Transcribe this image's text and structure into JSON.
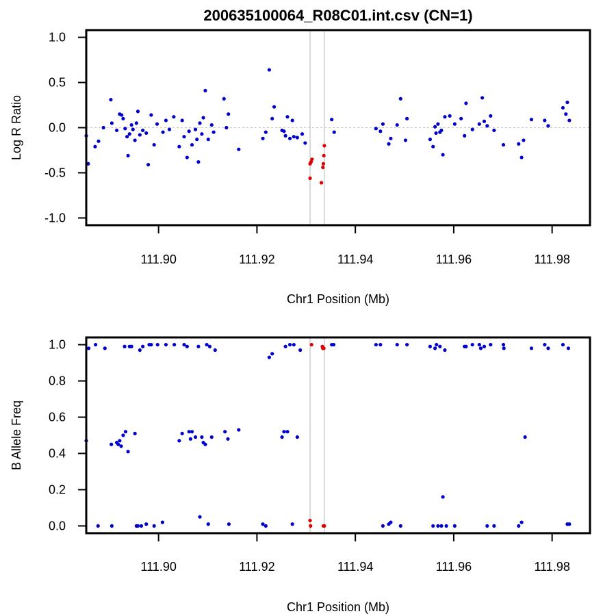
{
  "title": "200635100064_R08C01.int.csv (CN=1)",
  "colors": {
    "normal": "#0000cc",
    "cnv": "#dd0000",
    "region_line": "#c0c0c0",
    "zero_line": "#c8c8c8"
  },
  "chart_data": [
    {
      "type": "scatter",
      "name": "lrr",
      "ylabel": "Log R Ratio",
      "xlabel": "Chr1 Position (Mb)",
      "xlim": [
        111.8853,
        111.9877
      ],
      "ylim": [
        -1.08,
        1.08
      ],
      "xticks": [
        "111.90",
        "111.92",
        "111.94",
        "111.96",
        "111.98"
      ],
      "yticks": [
        "-1.0",
        "-0.5",
        "0.0",
        "0.5",
        "1.0"
      ],
      "hline": 0,
      "region": [
        111.9308,
        111.9337
      ],
      "normal_points": [
        [
          111.8853,
          -0.09
        ],
        [
          111.8857,
          -0.4
        ],
        [
          111.8871,
          -0.21
        ],
        [
          111.8878,
          -0.15
        ],
        [
          111.8888,
          0.0
        ],
        [
          111.8903,
          0.31
        ],
        [
          111.8905,
          0.05
        ],
        [
          111.8915,
          -0.03
        ],
        [
          111.8921,
          0.15
        ],
        [
          111.8925,
          0.14
        ],
        [
          111.8928,
          0.1
        ],
        [
          111.8932,
          -0.01
        ],
        [
          111.8936,
          -0.1
        ],
        [
          111.8938,
          -0.31
        ],
        [
          111.8941,
          -0.07
        ],
        [
          111.8945,
          0.03
        ],
        [
          111.8948,
          -0.02
        ],
        [
          111.8952,
          -0.14
        ],
        [
          111.8955,
          0.05
        ],
        [
          111.8958,
          0.18
        ],
        [
          111.8962,
          -0.08
        ],
        [
          111.8968,
          -0.03
        ],
        [
          111.8975,
          -0.06
        ],
        [
          111.8979,
          -0.41
        ],
        [
          111.8985,
          0.14
        ],
        [
          111.8991,
          -0.19
        ],
        [
          111.8997,
          0.04
        ],
        [
          111.9009,
          -0.05
        ],
        [
          111.9015,
          0.08
        ],
        [
          111.9022,
          -0.02
        ],
        [
          111.9031,
          0.12
        ],
        [
          111.9042,
          -0.21
        ],
        [
          111.9048,
          0.08
        ],
        [
          111.9052,
          -0.1
        ],
        [
          111.9058,
          -0.33
        ],
        [
          111.9062,
          -0.04
        ],
        [
          111.9068,
          -0.19
        ],
        [
          111.9075,
          -0.02
        ],
        [
          111.9078,
          -0.13
        ],
        [
          111.9081,
          -0.38
        ],
        [
          111.9084,
          0.05
        ],
        [
          111.9088,
          -0.07
        ],
        [
          111.9091,
          0.11
        ],
        [
          111.9095,
          0.41
        ],
        [
          111.9101,
          -0.13
        ],
        [
          111.9108,
          0.03
        ],
        [
          111.9112,
          -0.05
        ],
        [
          111.9133,
          0.32
        ],
        [
          111.9138,
          0.0
        ],
        [
          111.9142,
          0.15
        ],
        [
          111.9163,
          -0.24
        ],
        [
          111.9212,
          -0.12
        ],
        [
          111.9218,
          -0.05
        ],
        [
          111.9225,
          0.64
        ],
        [
          111.9231,
          0.1
        ],
        [
          111.9235,
          0.23
        ],
        [
          111.9251,
          -0.03
        ],
        [
          111.9255,
          -0.04
        ],
        [
          111.9258,
          -0.09
        ],
        [
          111.9262,
          0.12
        ],
        [
          111.9267,
          -0.12
        ],
        [
          111.9272,
          0.08
        ],
        [
          111.9275,
          -0.1
        ],
        [
          111.9282,
          -0.11
        ],
        [
          111.9292,
          -0.07
        ],
        [
          111.9298,
          -0.17
        ],
        [
          111.9352,
          0.09
        ],
        [
          111.9357,
          -0.05
        ],
        [
          111.9442,
          -0.01
        ],
        [
          111.9451,
          -0.04
        ],
        [
          111.9456,
          0.04
        ],
        [
          111.9468,
          -0.18
        ],
        [
          111.9472,
          -0.12
        ],
        [
          111.9485,
          0.03
        ],
        [
          111.9492,
          0.32
        ],
        [
          111.9502,
          -0.14
        ],
        [
          111.9505,
          0.1
        ],
        [
          111.9552,
          -0.13
        ],
        [
          111.9558,
          -0.21
        ],
        [
          111.9562,
          0.01
        ],
        [
          111.9564,
          -0.06
        ],
        [
          111.9568,
          0.04
        ],
        [
          111.9572,
          -0.05
        ],
        [
          111.9575,
          -0.03
        ],
        [
          111.9578,
          -0.3
        ],
        [
          111.9582,
          0.12
        ],
        [
          111.9592,
          0.13
        ],
        [
          111.9602,
          0.04
        ],
        [
          111.9615,
          0.1
        ],
        [
          111.9622,
          -0.09
        ],
        [
          111.9625,
          0.27
        ],
        [
          111.9638,
          -0.02
        ],
        [
          111.9652,
          0.04
        ],
        [
          111.9658,
          0.33
        ],
        [
          111.9662,
          0.07
        ],
        [
          111.9668,
          0.02
        ],
        [
          111.9675,
          0.13
        ],
        [
          111.9682,
          -0.03
        ],
        [
          111.9701,
          -0.19
        ],
        [
          111.9732,
          -0.18
        ],
        [
          111.9738,
          -0.33
        ],
        [
          111.9742,
          -0.14
        ],
        [
          111.9758,
          0.09
        ],
        [
          111.9785,
          0.08
        ],
        [
          111.9792,
          0.02
        ],
        [
          111.9822,
          0.22
        ],
        [
          111.9828,
          0.15
        ],
        [
          111.9831,
          0.28
        ],
        [
          111.9835,
          0.08
        ]
      ],
      "cnv_points": [
        [
          111.9308,
          -0.4
        ],
        [
          111.9308,
          -0.56
        ],
        [
          111.931,
          -0.38
        ],
        [
          111.9312,
          -0.35
        ],
        [
          111.9331,
          -0.61
        ],
        [
          111.9334,
          -0.44
        ],
        [
          111.9335,
          -0.4
        ],
        [
          111.9336,
          -0.31
        ],
        [
          111.9337,
          -0.2
        ]
      ]
    },
    {
      "type": "scatter",
      "name": "baf",
      "ylabel": "B Allele Freq",
      "xlabel": "Chr1 Position (Mb)",
      "xlim": [
        111.8853,
        111.9877
      ],
      "ylim": [
        -0.04,
        1.04
      ],
      "xticks": [
        "111.90",
        "111.92",
        "111.94",
        "111.96",
        "111.98"
      ],
      "yticks": [
        "0.0",
        "0.2",
        "0.4",
        "0.6",
        "0.8",
        "1.0"
      ],
      "region": [
        111.9308,
        111.9337
      ],
      "normal_points": [
        [
          111.8853,
          0.47
        ],
        [
          111.8858,
          0.98
        ],
        [
          111.8872,
          1.0
        ],
        [
          111.8877,
          0.0
        ],
        [
          111.8891,
          0.98
        ],
        [
          111.8904,
          0.45
        ],
        [
          111.8905,
          0.0
        ],
        [
          111.8915,
          0.46
        ],
        [
          111.8918,
          0.45
        ],
        [
          111.8921,
          0.47
        ],
        [
          111.8924,
          0.44
        ],
        [
          111.8928,
          0.5
        ],
        [
          111.8931,
          0.99
        ],
        [
          111.8933,
          0.52
        ],
        [
          111.8938,
          0.41
        ],
        [
          111.8941,
          0.99
        ],
        [
          111.8945,
          0.99
        ],
        [
          111.8952,
          0.51
        ],
        [
          111.8955,
          0.0
        ],
        [
          111.8958,
          0.0
        ],
        [
          111.8962,
          0.97
        ],
        [
          111.8965,
          0.0
        ],
        [
          111.8968,
          0.99
        ],
        [
          111.8975,
          0.01
        ],
        [
          111.8981,
          1.0
        ],
        [
          111.8985,
          1.0
        ],
        [
          111.8991,
          0.0
        ],
        [
          111.8998,
          1.0
        ],
        [
          111.9008,
          0.02
        ],
        [
          111.9015,
          1.0
        ],
        [
          111.9032,
          1.0
        ],
        [
          111.9042,
          0.47
        ],
        [
          111.9048,
          0.51
        ],
        [
          111.9052,
          1.0
        ],
        [
          111.9058,
          0.99
        ],
        [
          111.9062,
          0.52
        ],
        [
          111.9065,
          0.48
        ],
        [
          111.9068,
          0.52
        ],
        [
          111.9075,
          0.49
        ],
        [
          111.9081,
          0.99
        ],
        [
          111.9084,
          0.05
        ],
        [
          111.9088,
          0.49
        ],
        [
          111.9091,
          0.46
        ],
        [
          111.9095,
          0.45
        ],
        [
          111.9098,
          1.0
        ],
        [
          111.9101,
          0.01
        ],
        [
          111.9104,
          0.99
        ],
        [
          111.9108,
          0.49
        ],
        [
          111.9115,
          0.97
        ],
        [
          111.9135,
          0.52
        ],
        [
          111.9141,
          0.48
        ],
        [
          111.9143,
          0.01
        ],
        [
          111.9163,
          0.53
        ],
        [
          111.9212,
          0.01
        ],
        [
          111.9218,
          0.0
        ],
        [
          111.9225,
          0.93
        ],
        [
          111.9231,
          0.95
        ],
        [
          111.9251,
          0.49
        ],
        [
          111.9255,
          0.52
        ],
        [
          111.9258,
          0.99
        ],
        [
          111.9262,
          0.52
        ],
        [
          111.9267,
          1.0
        ],
        [
          111.9272,
          0.01
        ],
        [
          111.9275,
          1.0
        ],
        [
          111.9282,
          0.49
        ],
        [
          111.9288,
          0.97
        ],
        [
          111.9352,
          1.0
        ],
        [
          111.9356,
          1.0
        ],
        [
          111.9442,
          1.0
        ],
        [
          111.9451,
          1.0
        ],
        [
          111.9456,
          0.0
        ],
        [
          111.9468,
          0.01
        ],
        [
          111.9472,
          0.02
        ],
        [
          111.9485,
          1.0
        ],
        [
          111.9492,
          0.0
        ],
        [
          111.9505,
          1.0
        ],
        [
          111.9552,
          0.99
        ],
        [
          111.9558,
          0.0
        ],
        [
          111.9562,
          0.98
        ],
        [
          111.9565,
          1.0
        ],
        [
          111.9568,
          0.0
        ],
        [
          111.9572,
          0.99
        ],
        [
          111.9575,
          0.0
        ],
        [
          111.9578,
          0.16
        ],
        [
          111.9582,
          0.97
        ],
        [
          111.9585,
          0.0
        ],
        [
          111.9602,
          0.0
        ],
        [
          111.9622,
          0.99
        ],
        [
          111.9625,
          0.99
        ],
        [
          111.9638,
          1.0
        ],
        [
          111.9652,
          1.0
        ],
        [
          111.9655,
          0.98
        ],
        [
          111.9662,
          0.99
        ],
        [
          111.9668,
          0.0
        ],
        [
          111.9675,
          1.0
        ],
        [
          111.9682,
          0.0
        ],
        [
          111.9701,
          1.0
        ],
        [
          111.9702,
          0.98
        ],
        [
          111.9732,
          0.0
        ],
        [
          111.9738,
          0.02
        ],
        [
          111.9745,
          0.49
        ],
        [
          111.9758,
          0.98
        ],
        [
          111.9785,
          1.0
        ],
        [
          111.9792,
          0.98
        ],
        [
          111.9822,
          1.0
        ],
        [
          111.9831,
          0.01
        ],
        [
          111.9833,
          0.98
        ],
        [
          111.9835,
          0.01
        ]
      ],
      "cnv_points": [
        [
          111.9308,
          0.03
        ],
        [
          111.9309,
          0.0
        ],
        [
          111.9311,
          1.0
        ],
        [
          111.9333,
          0.99
        ],
        [
          111.9334,
          0.98
        ],
        [
          111.9335,
          0.0
        ],
        [
          111.9336,
          0.98
        ],
        [
          111.9337,
          0.0
        ]
      ]
    }
  ]
}
